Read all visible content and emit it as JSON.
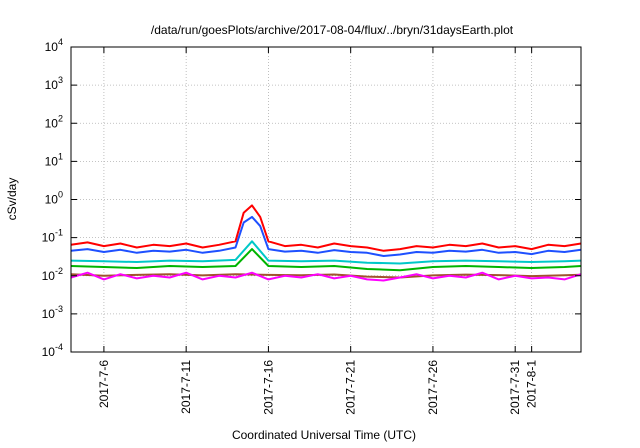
{
  "chart_data": {
    "type": "line",
    "title": "/data/run/goesPlots/archive/2017-08-04/flux/../bryn/31daysEarth.plot",
    "xlabel": "Coordinated Universal Time (UTC)",
    "ylabel": "cSv/day",
    "yscale": "log",
    "ylim": [
      0.0001,
      10000
    ],
    "xlim": [
      "2017-07-04",
      "2017-08-04"
    ],
    "grid": true,
    "legend": "none",
    "x_ticks": [
      {
        "date": "2017-07-06",
        "label": "2017-7-6"
      },
      {
        "date": "2017-07-11",
        "label": "2017-7-11"
      },
      {
        "date": "2017-07-16",
        "label": "2017-7-16"
      },
      {
        "date": "2017-07-21",
        "label": "2017-7-21"
      },
      {
        "date": "2017-07-26",
        "label": "2017-7-26"
      },
      {
        "date": "2017-07-31",
        "label": "2017-7-31"
      },
      {
        "date": "2017-08-01",
        "label": "2017-8-1"
      }
    ],
    "y_ticks": [
      {
        "value": 0.0001,
        "base": "10",
        "exp": "-4"
      },
      {
        "value": 0.001,
        "base": "10",
        "exp": "-3"
      },
      {
        "value": 0.01,
        "base": "10",
        "exp": "-2"
      },
      {
        "value": 0.1,
        "base": "10",
        "exp": "-1"
      },
      {
        "value": 1,
        "base": "10",
        "exp": "0"
      },
      {
        "value": 10,
        "base": "10",
        "exp": "1"
      },
      {
        "value": 100,
        "base": "10",
        "exp": "2"
      },
      {
        "value": 1000,
        "base": "10",
        "exp": "3"
      },
      {
        "value": 10000,
        "base": "10",
        "exp": "4"
      }
    ],
    "series": [
      {
        "color": "#ff0000",
        "x": [
          "2017-07-04",
          "2017-07-05",
          "2017-07-06",
          "2017-07-07",
          "2017-07-08",
          "2017-07-09",
          "2017-07-10",
          "2017-07-11",
          "2017-07-12",
          "2017-07-13",
          "2017-07-14",
          "2017-07-14T12:00",
          "2017-07-15",
          "2017-07-15T12:00",
          "2017-07-16",
          "2017-07-17",
          "2017-07-18",
          "2017-07-19",
          "2017-07-20",
          "2017-07-21",
          "2017-07-22",
          "2017-07-23",
          "2017-07-24",
          "2017-07-25",
          "2017-07-26",
          "2017-07-27",
          "2017-07-28",
          "2017-07-29",
          "2017-07-30",
          "2017-07-31",
          "2017-08-01",
          "2017-08-02",
          "2017-08-03",
          "2017-08-04"
        ],
        "y": [
          0.065,
          0.075,
          0.06,
          0.07,
          0.055,
          0.065,
          0.06,
          0.07,
          0.055,
          0.065,
          0.08,
          0.45,
          0.7,
          0.35,
          0.08,
          0.06,
          0.065,
          0.055,
          0.07,
          0.06,
          0.055,
          0.045,
          0.05,
          0.06,
          0.055,
          0.065,
          0.06,
          0.07,
          0.055,
          0.06,
          0.05,
          0.065,
          0.06,
          0.07
        ]
      },
      {
        "color": "#1e50ff",
        "x": [
          "2017-07-04",
          "2017-07-05",
          "2017-07-06",
          "2017-07-07",
          "2017-07-08",
          "2017-07-09",
          "2017-07-10",
          "2017-07-11",
          "2017-07-12",
          "2017-07-13",
          "2017-07-14",
          "2017-07-14T12:00",
          "2017-07-15",
          "2017-07-15T12:00",
          "2017-07-16",
          "2017-07-17",
          "2017-07-18",
          "2017-07-19",
          "2017-07-20",
          "2017-07-21",
          "2017-07-22",
          "2017-07-23",
          "2017-07-24",
          "2017-07-25",
          "2017-07-26",
          "2017-07-27",
          "2017-07-28",
          "2017-07-29",
          "2017-07-30",
          "2017-07-31",
          "2017-08-01",
          "2017-08-02",
          "2017-08-03",
          "2017-08-04"
        ],
        "y": [
          0.045,
          0.05,
          0.042,
          0.048,
          0.04,
          0.045,
          0.043,
          0.048,
          0.04,
          0.045,
          0.055,
          0.25,
          0.35,
          0.2,
          0.05,
          0.043,
          0.045,
          0.04,
          0.047,
          0.042,
          0.04,
          0.033,
          0.036,
          0.042,
          0.04,
          0.045,
          0.043,
          0.048,
          0.04,
          0.042,
          0.037,
          0.045,
          0.042,
          0.048
        ]
      },
      {
        "color": "#00c8c8",
        "x": [
          "2017-07-04",
          "2017-07-06",
          "2017-07-08",
          "2017-07-10",
          "2017-07-12",
          "2017-07-14",
          "2017-07-15",
          "2017-07-16",
          "2017-07-18",
          "2017-07-20",
          "2017-07-22",
          "2017-07-24",
          "2017-07-26",
          "2017-07-28",
          "2017-07-30",
          "2017-08-01",
          "2017-08-03",
          "2017-08-04"
        ],
        "y": [
          0.025,
          0.024,
          0.023,
          0.025,
          0.024,
          0.026,
          0.08,
          0.025,
          0.024,
          0.025,
          0.022,
          0.021,
          0.024,
          0.025,
          0.024,
          0.023,
          0.024,
          0.025
        ]
      },
      {
        "color": "#00b400",
        "x": [
          "2017-07-04",
          "2017-07-06",
          "2017-07-08",
          "2017-07-10",
          "2017-07-12",
          "2017-07-14",
          "2017-07-15",
          "2017-07-16",
          "2017-07-18",
          "2017-07-20",
          "2017-07-22",
          "2017-07-24",
          "2017-07-26",
          "2017-07-28",
          "2017-07-30",
          "2017-08-01",
          "2017-08-03",
          "2017-08-04"
        ],
        "y": [
          0.018,
          0.017,
          0.016,
          0.018,
          0.017,
          0.018,
          0.05,
          0.018,
          0.017,
          0.018,
          0.015,
          0.014,
          0.017,
          0.018,
          0.017,
          0.016,
          0.017,
          0.018
        ]
      },
      {
        "color": "#a0522d",
        "x": [
          "2017-07-04",
          "2017-07-06",
          "2017-07-08",
          "2017-07-10",
          "2017-07-12",
          "2017-07-14",
          "2017-07-16",
          "2017-07-18",
          "2017-07-20",
          "2017-07-22",
          "2017-07-24",
          "2017-07-26",
          "2017-07-28",
          "2017-07-30",
          "2017-08-01",
          "2017-08-03",
          "2017-08-04"
        ],
        "y": [
          0.011,
          0.01,
          0.0105,
          0.011,
          0.0102,
          0.011,
          0.0105,
          0.0103,
          0.0108,
          0.0095,
          0.009,
          0.0102,
          0.0107,
          0.0104,
          0.0098,
          0.0103,
          0.0106
        ]
      },
      {
        "color": "#ff00ff",
        "x": [
          "2017-07-04",
          "2017-07-05",
          "2017-07-06",
          "2017-07-07",
          "2017-07-08",
          "2017-07-09",
          "2017-07-10",
          "2017-07-11",
          "2017-07-12",
          "2017-07-13",
          "2017-07-14",
          "2017-07-15",
          "2017-07-16",
          "2017-07-17",
          "2017-07-18",
          "2017-07-19",
          "2017-07-20",
          "2017-07-21",
          "2017-07-22",
          "2017-07-23",
          "2017-07-24",
          "2017-07-25",
          "2017-07-26",
          "2017-07-27",
          "2017-07-28",
          "2017-07-29",
          "2017-07-30",
          "2017-07-31",
          "2017-08-01",
          "2017-08-02",
          "2017-08-03",
          "2017-08-04"
        ],
        "y": [
          0.009,
          0.012,
          0.008,
          0.011,
          0.0085,
          0.01,
          0.009,
          0.012,
          0.008,
          0.01,
          0.009,
          0.012,
          0.008,
          0.01,
          0.009,
          0.011,
          0.0085,
          0.01,
          0.008,
          0.0075,
          0.009,
          0.011,
          0.0085,
          0.01,
          0.009,
          0.012,
          0.008,
          0.01,
          0.0085,
          0.009,
          0.008,
          0.011
        ]
      }
    ]
  }
}
